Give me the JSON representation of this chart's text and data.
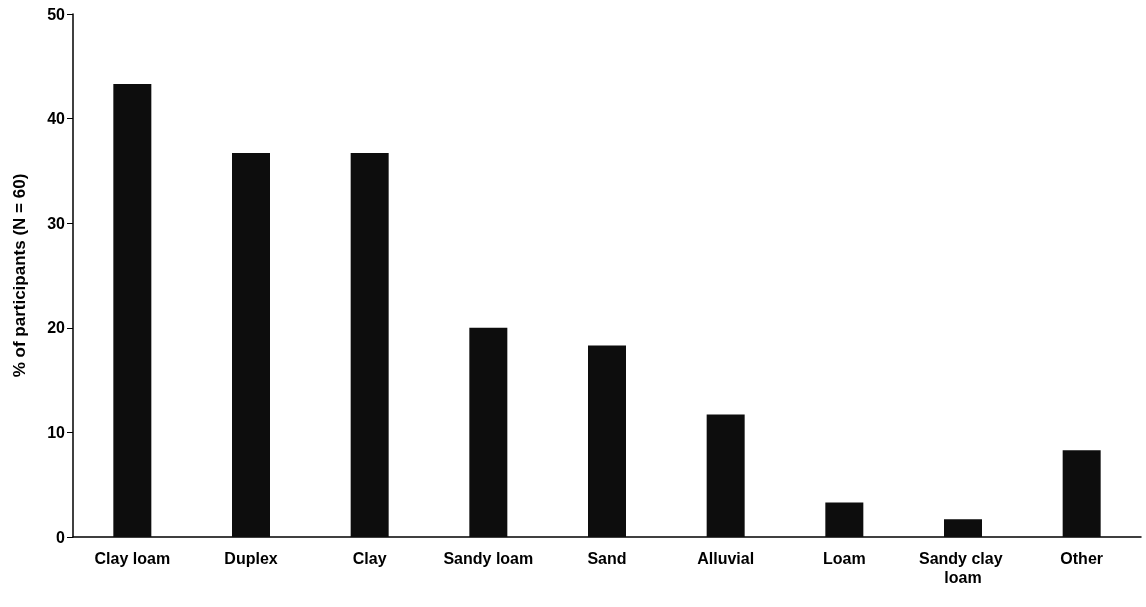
{
  "chart_data": {
    "type": "bar",
    "ylabel": "% of participants (N = 60)",
    "categories": [
      "Clay loam",
      "Duplex",
      "Clay",
      "Sandy loam",
      "Sand",
      "Alluvial",
      "Loam",
      "Sandy clay loam",
      "Other"
    ],
    "values": [
      43.3,
      36.7,
      36.7,
      20.0,
      18.3,
      11.7,
      3.3,
      1.7,
      8.3
    ],
    "color": "#0d0d0d",
    "ylim": [
      0,
      50
    ],
    "yticks": [
      0,
      10,
      20,
      30,
      40,
      50
    ],
    "grid": false
  }
}
